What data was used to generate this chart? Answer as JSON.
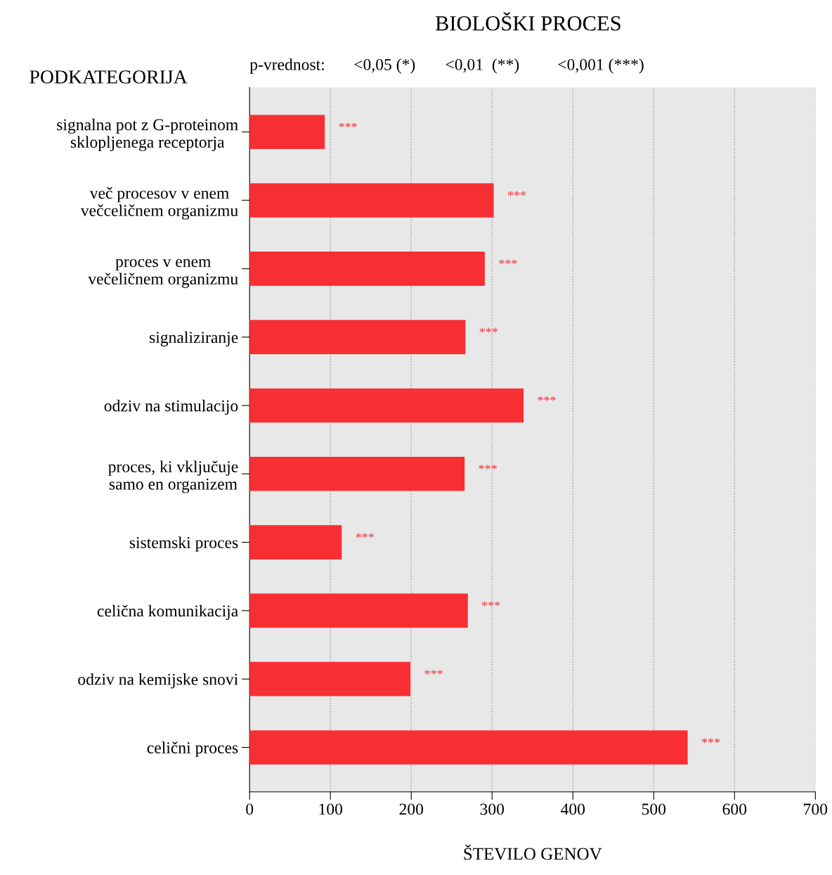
{
  "chart_data": {
    "type": "bar",
    "orientation": "horizontal",
    "title": "BIOLOŠKI PROCES",
    "ylabel": "PODKATEGORIJA",
    "xlabel": "ŠTEVILO GENOV",
    "annotations": [
      "p-vrednost:",
      "<0,05 (*)",
      "<0,01  (**)",
      "<0,001 (***)"
    ],
    "categories": [
      "signalna pot z G-proteinom\nsklopljenega receptorja",
      "več procesov v enem\nvečceličnem organizmu",
      "proces v enem\nvečeličnem organizmu",
      "signaliziranje",
      "odziv na stimulacijo",
      "proces, ki vključuje\nsamo en organizem",
      "sistemski proces",
      "celična komunikacija",
      "odziv na kemijske snovi",
      "celični proces"
    ],
    "values": [
      93,
      302,
      291,
      267,
      339,
      266,
      114,
      270,
      199,
      542
    ],
    "value_labels": [
      "***",
      "***",
      "***",
      "***",
      "***",
      "***",
      "***",
      "***",
      "***",
      "***"
    ],
    "color": "#f72f33",
    "xlim": [
      0,
      700
    ],
    "xticks": [
      0,
      100,
      200,
      300,
      400,
      500,
      600,
      700
    ],
    "grid": "x"
  }
}
